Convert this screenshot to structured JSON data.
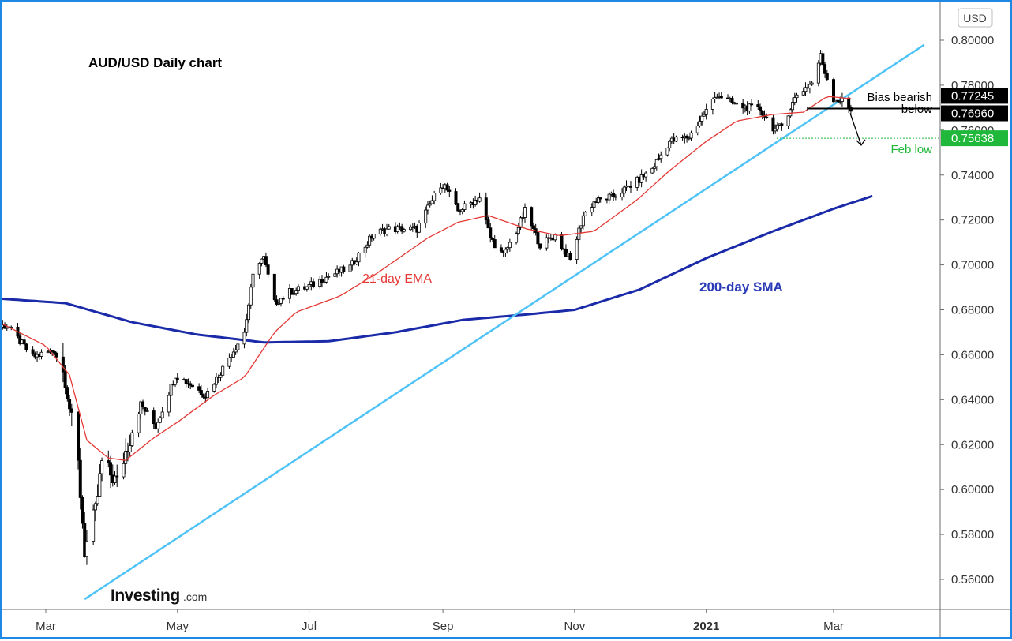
{
  "chart_data": {
    "type": "candlestick",
    "title": "AUD/USD Daily chart",
    "currency_label": "USD",
    "y_ticks": [
      0.56,
      0.58,
      0.6,
      0.62,
      0.64,
      0.66,
      0.68,
      0.7,
      0.72,
      0.74,
      0.76,
      0.78,
      0.8
    ],
    "y_tick_labels": [
      "0.56000",
      "0.58000",
      "0.60000",
      "0.62000",
      "0.64000",
      "0.66000",
      "0.68000",
      "0.70000",
      "0.72000",
      "0.74000",
      "0.76000",
      "0.78000",
      "0.80000"
    ],
    "x_tick_labels": [
      {
        "label": "Mar",
        "date": "2020-03-01",
        "bold": false
      },
      {
        "label": "May",
        "date": "2020-05-01",
        "bold": false
      },
      {
        "label": "Jul",
        "date": "2020-07-01",
        "bold": false
      },
      {
        "label": "Sep",
        "date": "2020-09-01",
        "bold": false
      },
      {
        "label": "Nov",
        "date": "2020-11-01",
        "bold": false
      },
      {
        "label": "2021",
        "date": "2021-01-01",
        "bold": true
      },
      {
        "label": "Mar",
        "date": "2021-03-01",
        "bold": true
      }
    ],
    "price_anchors": [
      [
        "2020-02-01",
        0.672
      ],
      [
        "2020-02-12",
        0.673
      ],
      [
        "2020-02-24",
        0.659
      ],
      [
        "2020-03-05",
        0.662
      ],
      [
        "2020-03-10",
        0.65
      ],
      [
        "2020-03-13",
        0.63
      ],
      [
        "2020-03-16",
        0.611
      ],
      [
        "2020-03-19",
        0.573
      ],
      [
        "2020-03-24",
        0.59
      ],
      [
        "2020-03-27",
        0.612
      ],
      [
        "2020-04-03",
        0.603
      ],
      [
        "2020-04-07",
        0.617
      ],
      [
        "2020-04-14",
        0.638
      ],
      [
        "2020-04-21",
        0.628
      ],
      [
        "2020-04-30",
        0.651
      ],
      [
        "2020-05-07",
        0.647
      ],
      [
        "2020-05-14",
        0.642
      ],
      [
        "2020-05-22",
        0.654
      ],
      [
        "2020-06-01",
        0.67
      ],
      [
        "2020-06-06",
        0.701
      ],
      [
        "2020-06-10",
        0.703
      ],
      [
        "2020-06-15",
        0.683
      ],
      [
        "2020-06-22",
        0.688
      ],
      [
        "2020-06-30",
        0.69
      ],
      [
        "2020-07-10",
        0.695
      ],
      [
        "2020-07-20",
        0.699
      ],
      [
        "2020-07-31",
        0.714
      ],
      [
        "2020-08-07",
        0.716
      ],
      [
        "2020-08-14",
        0.716
      ],
      [
        "2020-08-20",
        0.716
      ],
      [
        "2020-08-31",
        0.736
      ],
      [
        "2020-09-02",
        0.735
      ],
      [
        "2020-09-08",
        0.724
      ],
      [
        "2020-09-18",
        0.73
      ],
      [
        "2020-09-23",
        0.712
      ],
      [
        "2020-09-29",
        0.704
      ],
      [
        "2020-10-06",
        0.717
      ],
      [
        "2020-10-09",
        0.724
      ],
      [
        "2020-10-16",
        0.709
      ],
      [
        "2020-10-23",
        0.713
      ],
      [
        "2020-10-30",
        0.702
      ],
      [
        "2020-11-05",
        0.722
      ],
      [
        "2020-11-10",
        0.728
      ],
      [
        "2020-11-20",
        0.731
      ],
      [
        "2020-12-01",
        0.738
      ],
      [
        "2020-12-07",
        0.743
      ],
      [
        "2020-12-15",
        0.755
      ],
      [
        "2020-12-24",
        0.757
      ],
      [
        "2021-01-06",
        0.776
      ],
      [
        "2021-01-15",
        0.771
      ],
      [
        "2021-01-26",
        0.769
      ],
      [
        "2021-02-02",
        0.76
      ],
      [
        "2021-02-05",
        0.762
      ],
      [
        "2021-02-12",
        0.776
      ],
      [
        "2021-02-19",
        0.781
      ],
      [
        "2021-02-23",
        0.793
      ],
      [
        "2021-02-25",
        0.786
      ],
      [
        "2021-03-01",
        0.774
      ],
      [
        "2021-03-05",
        0.773
      ],
      [
        "2021-03-09",
        0.769
      ]
    ],
    "ema21_anchors": [
      [
        "2020-02-01",
        0.678
      ],
      [
        "2020-03-01",
        0.664
      ],
      [
        "2020-03-12",
        0.651
      ],
      [
        "2020-03-20",
        0.622
      ],
      [
        "2020-03-30",
        0.614
      ],
      [
        "2020-04-07",
        0.613
      ],
      [
        "2020-04-20",
        0.623
      ],
      [
        "2020-05-01",
        0.63
      ],
      [
        "2020-05-18",
        0.642
      ],
      [
        "2020-06-01",
        0.65
      ],
      [
        "2020-06-15",
        0.67
      ],
      [
        "2020-06-25",
        0.679
      ],
      [
        "2020-07-15",
        0.686
      ],
      [
        "2020-08-01",
        0.696
      ],
      [
        "2020-08-25",
        0.712
      ],
      [
        "2020-09-08",
        0.719
      ],
      [
        "2020-09-22",
        0.722
      ],
      [
        "2020-10-10",
        0.716
      ],
      [
        "2020-10-25",
        0.713
      ],
      [
        "2020-11-10",
        0.715
      ],
      [
        "2020-11-30",
        0.729
      ],
      [
        "2020-12-15",
        0.742
      ],
      [
        "2021-01-01",
        0.755
      ],
      [
        "2021-01-15",
        0.764
      ],
      [
        "2021-02-01",
        0.767
      ],
      [
        "2021-02-15",
        0.768
      ],
      [
        "2021-02-26",
        0.775
      ],
      [
        "2021-03-09",
        0.774
      ]
    ],
    "sma200_anchors": [
      [
        "2020-02-01",
        0.6855
      ],
      [
        "2020-03-10",
        0.683
      ],
      [
        "2020-04-10",
        0.6745
      ],
      [
        "2020-05-10",
        0.669
      ],
      [
        "2020-06-10",
        0.6655
      ],
      [
        "2020-07-10",
        0.666
      ],
      [
        "2020-08-10",
        0.67
      ],
      [
        "2020-09-10",
        0.6755
      ],
      [
        "2020-10-10",
        0.678
      ],
      [
        "2020-11-01",
        0.68
      ],
      [
        "2020-12-01",
        0.689
      ],
      [
        "2021-01-01",
        0.703
      ],
      [
        "2021-02-01",
        0.715
      ],
      [
        "2021-03-01",
        0.725
      ],
      [
        "2021-03-20",
        0.731
      ]
    ],
    "trendline": {
      "start": [
        "2020-03-19",
        0.5512
      ],
      "end": [
        "2021-04-12",
        0.798
      ],
      "label": ""
    },
    "levels": [
      {
        "value": 0.77245,
        "label": "0.77245",
        "color": "#000000"
      },
      {
        "value": 0.7696,
        "label": "0.76960",
        "color": "#000000"
      },
      {
        "value": 0.75638,
        "label": "0.75638",
        "color": "#1fb83a"
      }
    ],
    "annotations": {
      "ema_label": "21-day EMA",
      "sma_label": "200-day SMA",
      "bias_line1": "Bias bearish",
      "bias_line2": "below",
      "feb_low": "Feb low"
    },
    "watermark": {
      "brand": "Investing",
      "suffix": ".com"
    },
    "colors": {
      "candle": "#000000",
      "ema": "#e53935",
      "sma": "#1a2aa8",
      "trend": "#4fc3f7",
      "support": "#1fb83a",
      "ema_text": "#e53935",
      "sma_text": "#2a3bb7",
      "frame": "#1e88e5"
    }
  }
}
